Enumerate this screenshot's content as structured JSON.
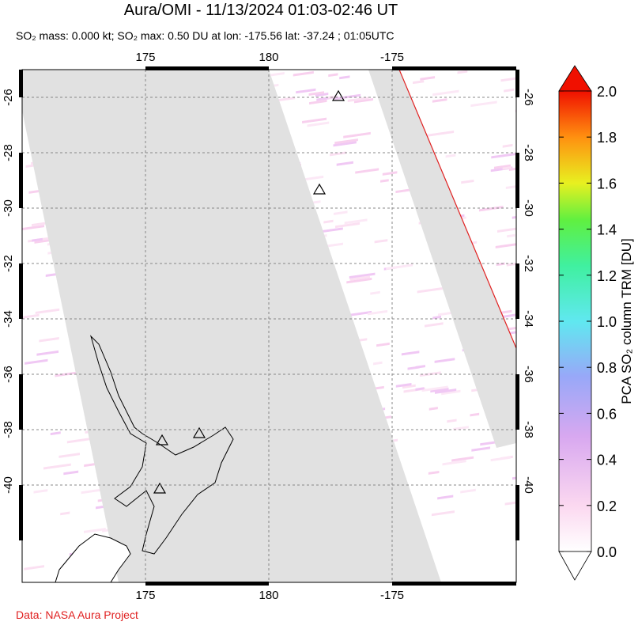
{
  "title": "Aura/OMI - 11/13/2024 01:03-02:46 UT",
  "subtitle": "SO₂ mass: 0.000 kt; SO₂ max: 0.50 DU at lon: -175.56 lat: -37.24 ; 01:05UTC",
  "map": {
    "lon_ticks": [
      "175",
      "180",
      "-175"
    ],
    "lat_ticks": [
      "-26",
      "-28",
      "-30",
      "-32",
      "-34",
      "-36",
      "-38",
      "-40"
    ]
  },
  "colorbar": {
    "label": "PCA SO₂ column TRM [DU]",
    "ticks": [
      "0.0",
      "0.2",
      "0.4",
      "0.6",
      "0.8",
      "1.0",
      "1.2",
      "1.4",
      "1.6",
      "1.8",
      "2.0"
    ]
  },
  "footer": "Data: NASA Aura Project"
}
